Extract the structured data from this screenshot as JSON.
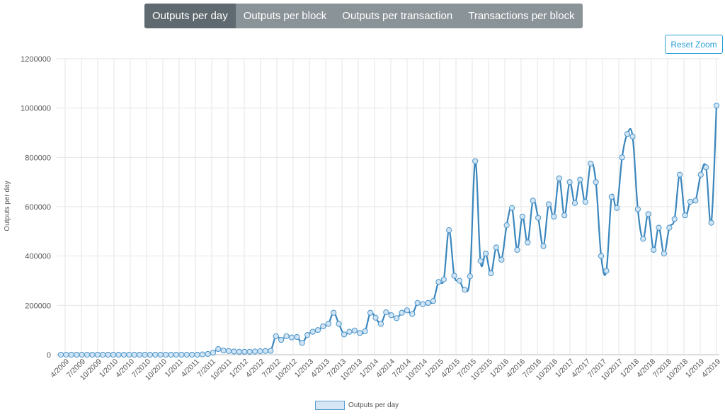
{
  "tabs": [
    "Outputs per day",
    "Outputs per block",
    "Outputs per transaction",
    "Transactions per block"
  ],
  "active_tab": 0,
  "reset_zoom_label": "Reset Zoom",
  "legend_label": "Outputs per day",
  "colors": {
    "line": "#3a86bd",
    "point_fill": "#d0e4f5",
    "grid": "#e6e6e6",
    "axis_text": "#555555"
  },
  "chart_data": {
    "type": "line",
    "title": "",
    "xlabel": "",
    "ylabel": "Outputs per day",
    "ylim": [
      0,
      1200000
    ],
    "yticks": [
      0,
      200000,
      400000,
      600000,
      800000,
      1000000,
      1200000
    ],
    "x_tick_labels": [
      "4/2009",
      "7/2009",
      "10/2009",
      "1/2010",
      "4/2010",
      "7/2010",
      "10/2010",
      "1/2011",
      "4/2011",
      "7/2011",
      "10/2011",
      "1/2012",
      "4/2012",
      "7/2012",
      "10/2012",
      "1/2013",
      "4/2013",
      "7/2013",
      "10/2013",
      "1/2014",
      "4/2014",
      "7/2014",
      "10/2014",
      "1/2015",
      "4/2015",
      "7/2015",
      "10/2015",
      "1/2016",
      "4/2016",
      "7/2016",
      "10/2016",
      "1/2017",
      "4/2017",
      "7/2017",
      "10/2017",
      "1/2018",
      "4/2018",
      "7/2018",
      "10/2018",
      "1/2019",
      "4/2019"
    ],
    "grid": true,
    "legend_position": "bottom",
    "series": [
      {
        "name": "Outputs per day",
        "values": [
          0,
          0,
          0,
          0,
          0,
          0,
          0,
          0,
          0,
          0,
          0,
          0,
          0,
          0,
          0,
          0,
          0,
          0,
          0,
          0,
          0,
          0,
          0,
          0,
          0,
          0,
          0,
          1000,
          3000,
          8000,
          23000,
          17000,
          15000,
          13000,
          12000,
          12000,
          12000,
          13000,
          14000,
          15000,
          16000,
          75000,
          60000,
          75000,
          70000,
          72000,
          48000,
          80000,
          93000,
          100000,
          115000,
          125000,
          170000,
          125000,
          82000,
          93000,
          98000,
          88000,
          95000,
          170000,
          150000,
          125000,
          172000,
          160000,
          148000,
          170000,
          180000,
          165000,
          210000,
          205000,
          210000,
          218000,
          295000,
          305000,
          505000,
          320000,
          300000,
          263000,
          318000,
          785000,
          380000,
          410000,
          330000,
          435000,
          385000,
          525000,
          595000,
          425000,
          560000,
          455000,
          625000,
          555000,
          440000,
          610000,
          560000,
          715000,
          565000,
          700000,
          615000,
          710000,
          620000,
          775000,
          700000,
          400000,
          340000,
          640000,
          595000,
          800000,
          895000,
          885000,
          590000,
          470000,
          570000,
          425000,
          515000,
          410000,
          515000,
          550000,
          730000,
          565000,
          620000,
          625000,
          730000,
          760000,
          535000,
          1010000
        ]
      }
    ]
  }
}
